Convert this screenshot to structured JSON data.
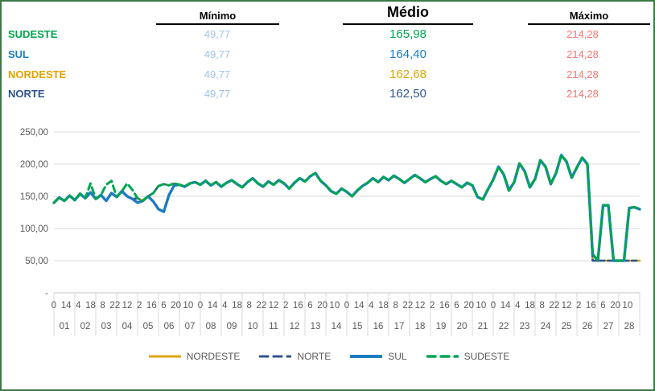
{
  "page": {
    "border_color": "#3a7a44",
    "background": "#ffffff"
  },
  "summary_table": {
    "columns": [
      {
        "key": "min",
        "label": "Mínimo"
      },
      {
        "key": "avg",
        "label": "Médio"
      },
      {
        "key": "max",
        "label": "Máximo"
      }
    ],
    "min_value_color": "#9DC3E6",
    "max_value_color": "#F87670",
    "rows": [
      {
        "region": "SUDESTE",
        "color": "#00A550",
        "min": "49,77",
        "avg": "165,98",
        "max": "214,28"
      },
      {
        "region": "SUL",
        "color": "#1E7CC1",
        "min": "49,77",
        "avg": "164,40",
        "max": "214,28"
      },
      {
        "region": "NORDESTE",
        "color": "#DFA400",
        "min": "49,77",
        "avg": "162,68",
        "max": "214,28"
      },
      {
        "region": "NORTE",
        "color": "#2E5490",
        "min": "49,77",
        "avg": "162,50",
        "max": "214,28"
      }
    ]
  },
  "chart_data": {
    "type": "line",
    "title": "",
    "xlabel": "",
    "ylabel": "",
    "ylim": [
      0,
      250
    ],
    "grid": true,
    "legend_position": "bottom",
    "y_ticks": [
      {
        "v": 250,
        "label": "250,00"
      },
      {
        "v": 200,
        "label": "200,00"
      },
      {
        "v": 150,
        "label": "150,00"
      },
      {
        "v": 100,
        "label": "100,00"
      },
      {
        "v": 50,
        "label": "50,00"
      },
      {
        "v": 0,
        "label": "-"
      }
    ],
    "x_days": [
      "01",
      "02",
      "03",
      "04",
      "05",
      "06",
      "07",
      "08",
      "09",
      "10",
      "11",
      "12",
      "13",
      "14",
      "15",
      "16",
      "17",
      "18",
      "19",
      "20",
      "21",
      "22",
      "23",
      "24",
      "25",
      "26",
      "27",
      "28"
    ],
    "hour_labels": [
      "0",
      "14",
      "4",
      "18",
      "8",
      "22",
      "12",
      "2",
      "16",
      "6",
      "20",
      "10",
      "0",
      "14",
      "4",
      "18",
      "8",
      "22",
      "12",
      "2",
      "16",
      "6",
      "20",
      "10",
      "0",
      "14",
      "4",
      "18",
      "8",
      "22",
      "12",
      "2",
      "16",
      "6",
      "20",
      "10",
      "0",
      "14",
      "4",
      "18",
      "8",
      "22",
      "12",
      "2",
      "16",
      "6",
      "20",
      "10"
    ],
    "hour_step_days": 0.5833333,
    "points_per_day": 4,
    "axis_text_color": "#595959",
    "grid_color": "#D9D9D9",
    "series": [
      {
        "name": "NORDESTE",
        "color": "#DFA400",
        "dash": "",
        "width": 2.6,
        "values": [
          140,
          148,
          143,
          151,
          144,
          154,
          147,
          156,
          146,
          152,
          143,
          155,
          149,
          158,
          150,
          146,
          147,
          143,
          150,
          155,
          166,
          169,
          167,
          170,
          168,
          165,
          170,
          172,
          168,
          174,
          167,
          172,
          165,
          171,
          175,
          169,
          164,
          172,
          178,
          170,
          165,
          173,
          168,
          175,
          170,
          162,
          171,
          178,
          173,
          181,
          186,
          174,
          167,
          158,
          154,
          162,
          157,
          150,
          159,
          166,
          171,
          178,
          172,
          180,
          175,
          182,
          177,
          171,
          177,
          183,
          178,
          172,
          177,
          181,
          174,
          169,
          174,
          169,
          164,
          171,
          167,
          149,
          145,
          161,
          176,
          196,
          184,
          159,
          172,
          201,
          189,
          164,
          177,
          206,
          196,
          169,
          186,
          214,
          204,
          179,
          195,
          210,
          200,
          50,
          50,
          50,
          50,
          50,
          50,
          50,
          50,
          50,
          50
        ]
      },
      {
        "name": "NORTE",
        "color": "#2E5490",
        "dash": "6 4",
        "width": 2.6,
        "values": [
          140,
          148,
          143,
          151,
          144,
          154,
          147,
          156,
          146,
          152,
          143,
          155,
          149,
          158,
          150,
          146,
          147,
          143,
          150,
          155,
          166,
          169,
          167,
          170,
          168,
          165,
          170,
          172,
          168,
          174,
          167,
          172,
          165,
          171,
          175,
          169,
          164,
          172,
          178,
          170,
          165,
          173,
          168,
          175,
          170,
          162,
          171,
          178,
          173,
          181,
          186,
          174,
          167,
          158,
          154,
          162,
          157,
          150,
          159,
          166,
          171,
          178,
          172,
          180,
          175,
          182,
          177,
          171,
          177,
          183,
          178,
          172,
          177,
          181,
          174,
          169,
          174,
          169,
          164,
          171,
          167,
          149,
          145,
          161,
          176,
          196,
          184,
          159,
          172,
          201,
          189,
          164,
          177,
          206,
          196,
          169,
          186,
          214,
          204,
          179,
          195,
          210,
          200,
          50,
          50,
          50,
          50,
          50,
          50,
          50,
          50,
          50,
          50
        ]
      },
      {
        "name": "SUL",
        "color": "#1E7CC1",
        "dash": "",
        "width": 3.4,
        "values": [
          140,
          148,
          143,
          151,
          144,
          154,
          147,
          156,
          146,
          152,
          143,
          155,
          149,
          158,
          150,
          146,
          140,
          143,
          150,
          142,
          130,
          126,
          152,
          167,
          168,
          165,
          170,
          172,
          168,
          174,
          167,
          172,
          165,
          171,
          175,
          169,
          164,
          172,
          178,
          170,
          165,
          173,
          168,
          175,
          170,
          162,
          171,
          178,
          173,
          181,
          186,
          174,
          167,
          158,
          154,
          162,
          157,
          150,
          159,
          166,
          171,
          178,
          172,
          180,
          175,
          182,
          177,
          171,
          177,
          183,
          178,
          172,
          177,
          181,
          174,
          169,
          174,
          169,
          164,
          171,
          167,
          149,
          145,
          161,
          176,
          196,
          184,
          159,
          172,
          201,
          189,
          164,
          177,
          206,
          196,
          169,
          186,
          214,
          204,
          179,
          195,
          210,
          200,
          60,
          50,
          136,
          136,
          50,
          50,
          50,
          132,
          133,
          130
        ]
      },
      {
        "name": "SUDESTE",
        "color": "#00A550",
        "dash": "8 5",
        "width": 3.0,
        "values": [
          140,
          148,
          143,
          151,
          144,
          154,
          147,
          170,
          146,
          152,
          168,
          174,
          149,
          158,
          170,
          160,
          147,
          143,
          150,
          155,
          166,
          169,
          167,
          170,
          168,
          165,
          170,
          172,
          168,
          174,
          167,
          172,
          165,
          171,
          175,
          169,
          164,
          172,
          178,
          170,
          165,
          173,
          168,
          175,
          170,
          162,
          171,
          178,
          173,
          181,
          186,
          174,
          167,
          158,
          154,
          162,
          157,
          150,
          159,
          166,
          171,
          178,
          172,
          180,
          175,
          182,
          177,
          171,
          177,
          183,
          178,
          172,
          177,
          181,
          174,
          169,
          174,
          169,
          164,
          171,
          167,
          149,
          145,
          161,
          176,
          196,
          184,
          159,
          172,
          201,
          189,
          164,
          177,
          206,
          196,
          169,
          186,
          214,
          204,
          179,
          195,
          210,
          200,
          60,
          50,
          136,
          136,
          50,
          50,
          50,
          132,
          133,
          130
        ]
      }
    ]
  }
}
